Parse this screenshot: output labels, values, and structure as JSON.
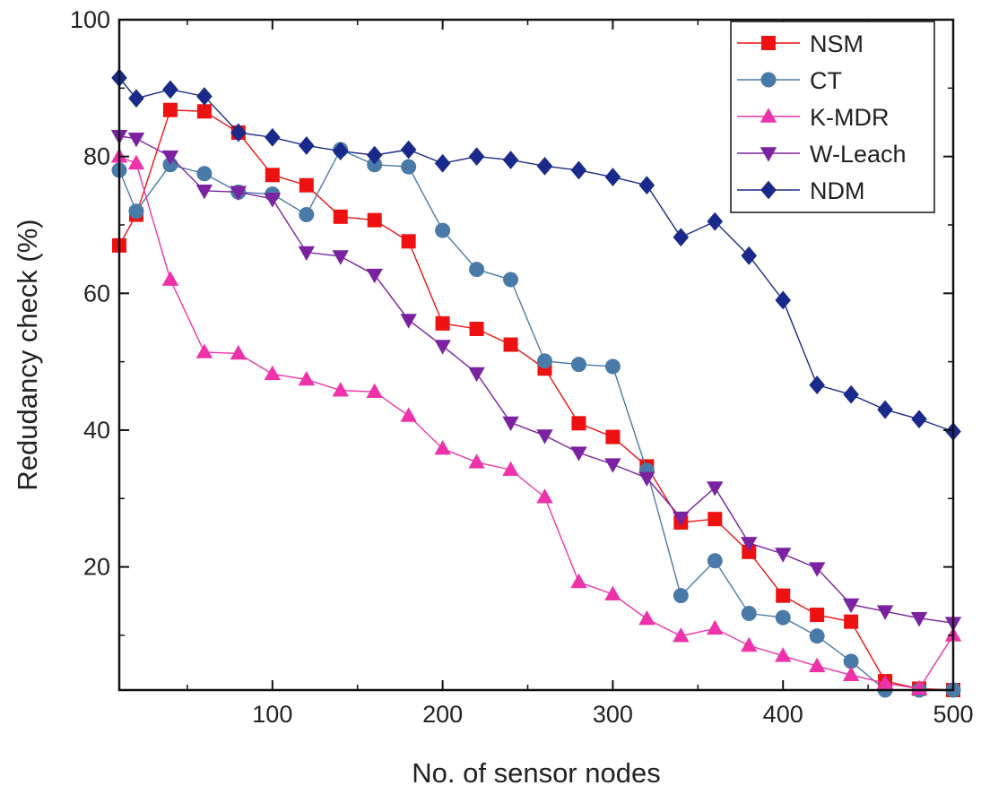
{
  "chart_data": {
    "type": "line",
    "xlabel": "No. of sensor nodes",
    "ylabel": "Redudancy check (%)",
    "xlim": [
      10,
      500
    ],
    "ylim": [
      2,
      100
    ],
    "xticks": [
      100,
      200,
      300,
      400,
      500
    ],
    "yticks": [
      20,
      40,
      60,
      80,
      100
    ],
    "xtick_labels": [
      "100",
      "200",
      "300",
      "400",
      "500"
    ],
    "ytick_labels": [
      "20",
      "40",
      "60",
      "80",
      "100"
    ],
    "grid": false,
    "legend_position": "top-right",
    "series": [
      {
        "name": "NSM",
        "color": "#ee1111",
        "marker": "square",
        "x": [
          10,
          20,
          40,
          60,
          80,
          100,
          120,
          140,
          160,
          180,
          200,
          220,
          240,
          260,
          280,
          300,
          320,
          340,
          360,
          380,
          400,
          420,
          440,
          460,
          480,
          500
        ],
        "y": [
          67,
          71.5,
          86.8,
          86.6,
          83.5,
          77.3,
          75.8,
          71.2,
          70.7,
          67.6,
          55.6,
          54.8,
          52.5,
          49,
          41,
          39,
          34.7,
          26.5,
          27,
          22.2,
          15.8,
          13,
          12,
          3.3,
          2.2,
          2
        ]
      },
      {
        "name": "CT",
        "color": "#4a7ba8",
        "marker": "circle",
        "x": [
          10,
          20,
          40,
          60,
          80,
          100,
          120,
          140,
          160,
          180,
          200,
          220,
          240,
          260,
          280,
          300,
          320,
          340,
          360,
          380,
          400,
          420,
          440,
          460,
          480,
          500
        ],
        "y": [
          78,
          72,
          78.8,
          77.5,
          74.8,
          74.5,
          71.5,
          81,
          78.8,
          78.5,
          69.2,
          63.5,
          62,
          50.1,
          49.6,
          49.3,
          34.1,
          15.8,
          20.9,
          13.2,
          12.6,
          9.9,
          6.2,
          2,
          2,
          2
        ]
      },
      {
        "name": "K-MDR",
        "color": "#ee33aa",
        "marker": "triangle-up",
        "x": [
          10,
          20,
          40,
          60,
          80,
          100,
          120,
          140,
          160,
          180,
          200,
          220,
          240,
          260,
          280,
          300,
          320,
          340,
          360,
          380,
          400,
          420,
          440,
          460,
          480,
          500
        ],
        "y": [
          80,
          79,
          62,
          51.4,
          51.2,
          48.2,
          47.4,
          45.8,
          45.6,
          42.1,
          37.3,
          35.3,
          34.2,
          30.2,
          17.8,
          16,
          12.4,
          9.9,
          11,
          8.5,
          7,
          5.5,
          4.2,
          3,
          2.2,
          10
        ]
      },
      {
        "name": "W-Leach",
        "color": "#7a22a0",
        "marker": "triangle-down",
        "x": [
          10,
          20,
          40,
          60,
          80,
          100,
          120,
          140,
          160,
          180,
          200,
          220,
          240,
          260,
          280,
          300,
          320,
          340,
          360,
          380,
          400,
          420,
          440,
          460,
          480,
          500
        ],
        "y": [
          83,
          82.6,
          80,
          75,
          74.8,
          73.8,
          66,
          65.4,
          62.7,
          56.1,
          52.3,
          48.3,
          41.1,
          39.2,
          36.7,
          35,
          33,
          27.2,
          31.6,
          23.5,
          21.9,
          19.8,
          14.5,
          13.5,
          12.5,
          11.8
        ]
      },
      {
        "name": "NDM",
        "color": "#1a2a8a",
        "marker": "diamond",
        "x": [
          10,
          20,
          40,
          60,
          80,
          100,
          120,
          140,
          160,
          180,
          200,
          220,
          240,
          260,
          280,
          300,
          320,
          340,
          360,
          380,
          400,
          420,
          440,
          460,
          480,
          500
        ],
        "y": [
          91.5,
          88.5,
          89.8,
          88.8,
          83.5,
          82.8,
          81.6,
          80.8,
          80.2,
          81,
          79,
          80,
          79.5,
          78.6,
          78,
          77,
          75.8,
          68.2,
          70.5,
          65.5,
          59,
          46.6,
          45.2,
          43,
          41.6,
          39.8
        ]
      }
    ]
  }
}
